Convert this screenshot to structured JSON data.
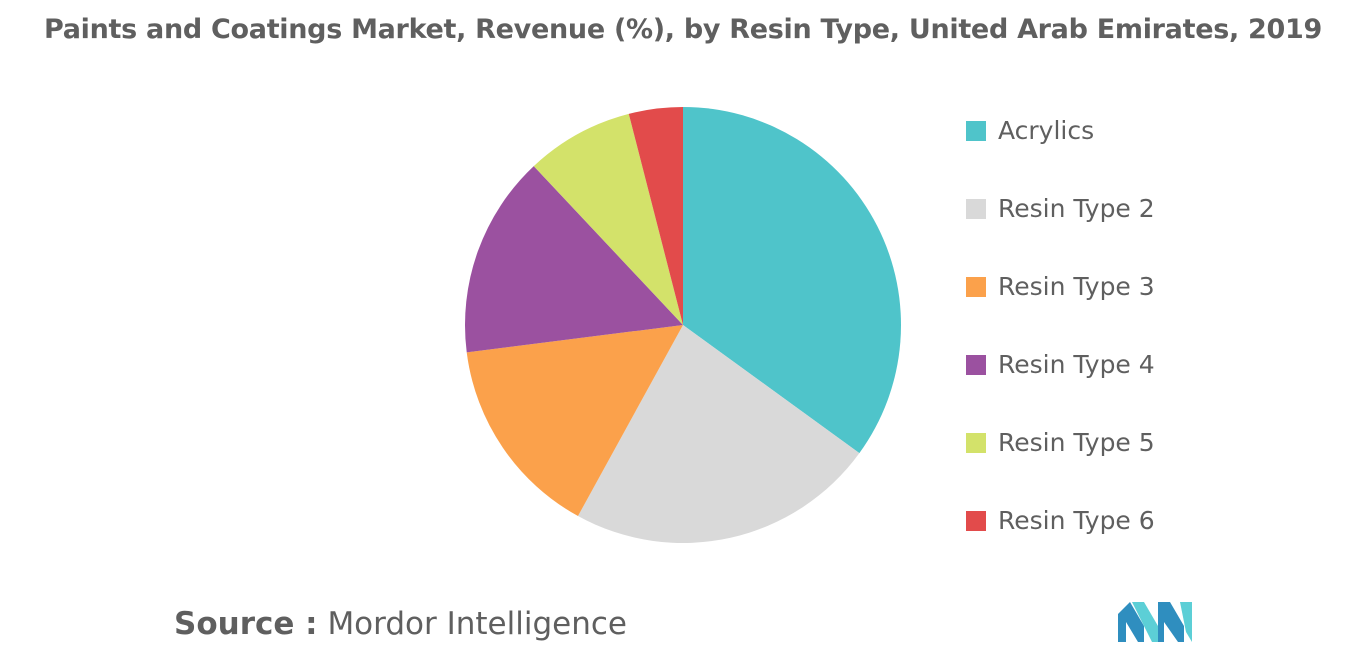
{
  "chart_data": {
    "type": "pie",
    "title": "Paints and Coatings Market, Revenue (%), by Resin Type, United Arab Emirates, 2019",
    "labels": [
      "Acrylics",
      "Resin Type 2",
      "Resin Type 3",
      "Resin Type 4",
      "Resin Type 5",
      "Resin Type 6"
    ],
    "values": [
      35,
      23,
      15,
      15,
      8,
      4
    ],
    "colors": [
      "#4fc4ca",
      "#d9d9d9",
      "#fba14b",
      "#9b51a0",
      "#d3e26a",
      "#e24b4b"
    ],
    "legend_position": "right"
  },
  "source": {
    "label": "Source :",
    "text": "Mordor Intelligence"
  },
  "logo": {
    "icon": "mordor-intelligence-logo",
    "colors": [
      "#2f8ebf",
      "#5ccfd6"
    ]
  }
}
